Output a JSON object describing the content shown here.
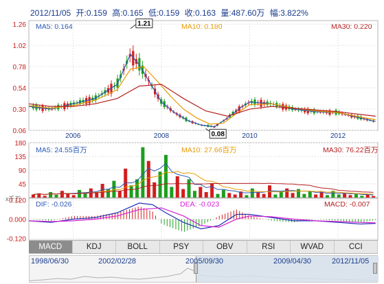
{
  "header": {
    "date": "2012/11/05",
    "open": "开:0.159",
    "high": "高:0.165",
    "low": "低:0.159",
    "close": "收:0.163",
    "volume": "量:487.60万",
    "change": "幅:3.822%"
  },
  "price_panel": {
    "ma5": "MA5: 0.164",
    "ma10": "MA10: 0.180",
    "ma30": "MA30: 0.220",
    "peak_label": "1.21",
    "trough_label": "0.08"
  },
  "volume_panel": {
    "ma5": "MA5: 24.55百万",
    "ma10": "MA10: 27.66百万",
    "ma30": "MA30: 76.22百万",
    "unit": "x千万"
  },
  "macd_panel": {
    "dif": "DIF: -0.026",
    "dea": "DEA: -0.023",
    "macd": "MACD: -0.007"
  },
  "tabs": [
    "MACD",
    "KDJ",
    "BOLL",
    "PSY",
    "OBV",
    "RSI",
    "WVAD",
    "CCI"
  ],
  "active_tab": "MACD",
  "navigator": {
    "dates": [
      "1998/06/30",
      "2002/02/28",
      "2005/09/30",
      "2009/04/30",
      "2012/11/05"
    ]
  },
  "colors": {
    "up": "#d21e1e",
    "down": "#1e9e1e",
    "ma5": "#2a57b4",
    "ma10": "#e69a00",
    "ma30": "#b41e1e",
    "dif": "#1f2fb4",
    "dea": "#d21ed2"
  },
  "chart_data": [
    {
      "type": "candlestick",
      "title": "",
      "x_ticks": [
        "2006",
        "2008",
        "2010",
        "2012"
      ],
      "y_ticks": [
        "1.26",
        "1.02",
        "0.78",
        "0.54",
        "0.30",
        "0.06"
      ],
      "ylim": [
        0.06,
        1.3
      ],
      "series": [
        {
          "name": "MA5",
          "t": [
            2005.0,
            2005.5,
            2006.0,
            2006.5,
            2007.0,
            2007.3,
            2007.5,
            2007.8,
            2008.0,
            2008.3,
            2008.6,
            2008.9,
            2009.2,
            2009.5,
            2009.8,
            2010.0,
            2010.5,
            2011.0,
            2011.5,
            2012.0,
            2012.5,
            2012.85
          ],
          "values": [
            0.33,
            0.3,
            0.36,
            0.42,
            0.58,
            0.92,
            0.8,
            0.55,
            0.38,
            0.26,
            0.17,
            0.12,
            0.1,
            0.2,
            0.32,
            0.38,
            0.36,
            0.3,
            0.27,
            0.26,
            0.2,
            0.16
          ]
        },
        {
          "name": "MA10",
          "t": [
            2005.0,
            2005.5,
            2006.0,
            2006.5,
            2007.0,
            2007.3,
            2007.6,
            2007.9,
            2008.2,
            2008.5,
            2008.8,
            2009.1,
            2009.4,
            2009.7,
            2010.0,
            2010.5,
            2011.0,
            2011.5,
            2012.0,
            2012.5,
            2012.85
          ],
          "values": [
            0.34,
            0.31,
            0.34,
            0.4,
            0.52,
            0.75,
            0.78,
            0.62,
            0.45,
            0.3,
            0.2,
            0.13,
            0.14,
            0.25,
            0.35,
            0.36,
            0.31,
            0.28,
            0.26,
            0.21,
            0.18
          ]
        },
        {
          "name": "MA30",
          "t": [
            2005.0,
            2005.5,
            2006.0,
            2006.5,
            2007.0,
            2007.5,
            2008.0,
            2008.5,
            2009.0,
            2009.5,
            2010.0,
            2010.5,
            2011.0,
            2011.5,
            2012.0,
            2012.5,
            2012.85
          ],
          "values": [
            0.36,
            0.33,
            0.33,
            0.36,
            0.42,
            0.56,
            0.58,
            0.42,
            0.28,
            0.22,
            0.3,
            0.33,
            0.31,
            0.29,
            0.27,
            0.24,
            0.22
          ]
        }
      ]
    },
    {
      "type": "bar",
      "title": "",
      "y_ticks": [
        "180",
        "135",
        "90",
        "45",
        "0"
      ],
      "ylim": [
        0,
        180
      ],
      "unit": "x千万",
      "values": [
        10,
        14,
        6,
        18,
        9,
        22,
        12,
        8,
        25,
        15,
        30,
        18,
        45,
        28,
        55,
        22,
        95,
        40,
        60,
        165,
        120,
        50,
        85,
        140,
        35,
        70,
        28,
        60,
        22,
        35,
        18,
        45,
        12,
        25,
        15,
        10,
        20,
        8,
        30,
        18,
        12,
        40,
        10,
        22,
        30,
        15,
        28,
        12,
        20,
        10,
        18,
        8,
        22,
        10,
        14,
        8,
        12,
        6,
        10,
        5
      ]
    },
    {
      "type": "line",
      "title": "",
      "y_ticks": [
        "0.120",
        "0.000",
        "-0.120"
      ],
      "ylim": [
        -0.13,
        0.13
      ],
      "series": [
        {
          "name": "DIF",
          "t": [
            2005.0,
            2005.5,
            2006.0,
            2006.5,
            2007.0,
            2007.5,
            2007.8,
            2008.1,
            2008.5,
            2008.9,
            2009.3,
            2009.7,
            2010.0,
            2010.5,
            2011.0,
            2011.5,
            2012.0,
            2012.5,
            2012.85
          ],
          "values": [
            -0.01,
            -0.02,
            0.0,
            0.01,
            0.04,
            0.1,
            0.09,
            0.04,
            -0.02,
            -0.06,
            -0.04,
            0.03,
            0.03,
            0.01,
            -0.01,
            -0.01,
            -0.02,
            -0.03,
            -0.026
          ]
        },
        {
          "name": "DEA",
          "t": [
            2005.0,
            2005.5,
            2006.0,
            2006.5,
            2007.0,
            2007.5,
            2008.0,
            2008.5,
            2008.9,
            2009.3,
            2009.7,
            2010.0,
            2010.5,
            2011.0,
            2011.5,
            2012.0,
            2012.5,
            2012.85
          ],
          "values": [
            -0.01,
            -0.015,
            -0.01,
            0.0,
            0.02,
            0.06,
            0.07,
            0.02,
            -0.04,
            -0.05,
            0.0,
            0.02,
            0.015,
            0.0,
            -0.01,
            -0.015,
            -0.02,
            -0.023
          ]
        }
      ]
    }
  ]
}
